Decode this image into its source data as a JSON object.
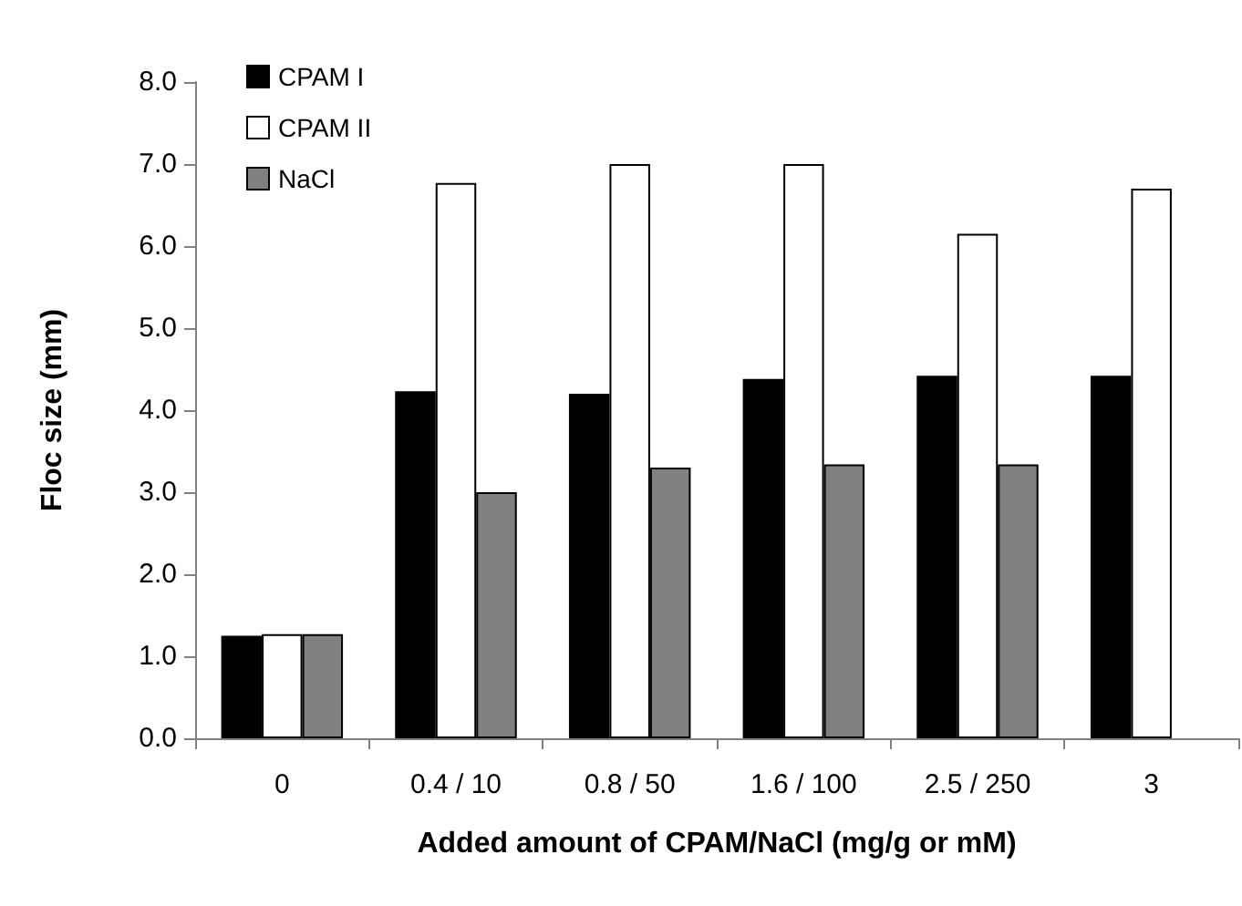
{
  "chart_data": {
    "type": "bar",
    "xlabel": "Added amount of CPAM/NaCl (mg/g or mM)",
    "ylabel": "Floc size (mm)",
    "categories": [
      "0",
      "0.4 / 10",
      "0.8 / 50",
      "1.6 / 100",
      "2.5 / 250",
      "3"
    ],
    "series": [
      {
        "name": "CPAM I",
        "color": "#000000",
        "values": [
          1.25,
          4.23,
          4.2,
          4.38,
          4.42,
          4.42
        ]
      },
      {
        "name": "CPAM II",
        "color": "#ffffff",
        "values": [
          1.27,
          6.77,
          7.0,
          7.0,
          6.15,
          6.7
        ]
      },
      {
        "name": "NaCl",
        "color": "#808080",
        "values": [
          1.27,
          3.0,
          3.3,
          3.34,
          3.34,
          null
        ]
      }
    ],
    "ylim": [
      0,
      8
    ],
    "yticks": [
      {
        "value": 0,
        "label": "0.0"
      },
      {
        "value": 1,
        "label": "1.0"
      },
      {
        "value": 2,
        "label": "2.0"
      },
      {
        "value": 3,
        "label": "3.0"
      },
      {
        "value": 4,
        "label": "4.0"
      },
      {
        "value": 5,
        "label": "5.0"
      },
      {
        "value": 6,
        "label": "6.0"
      },
      {
        "value": 7,
        "label": "7.0"
      },
      {
        "value": 8,
        "label": "8.0"
      }
    ],
    "grid": false,
    "legend": "top left"
  }
}
